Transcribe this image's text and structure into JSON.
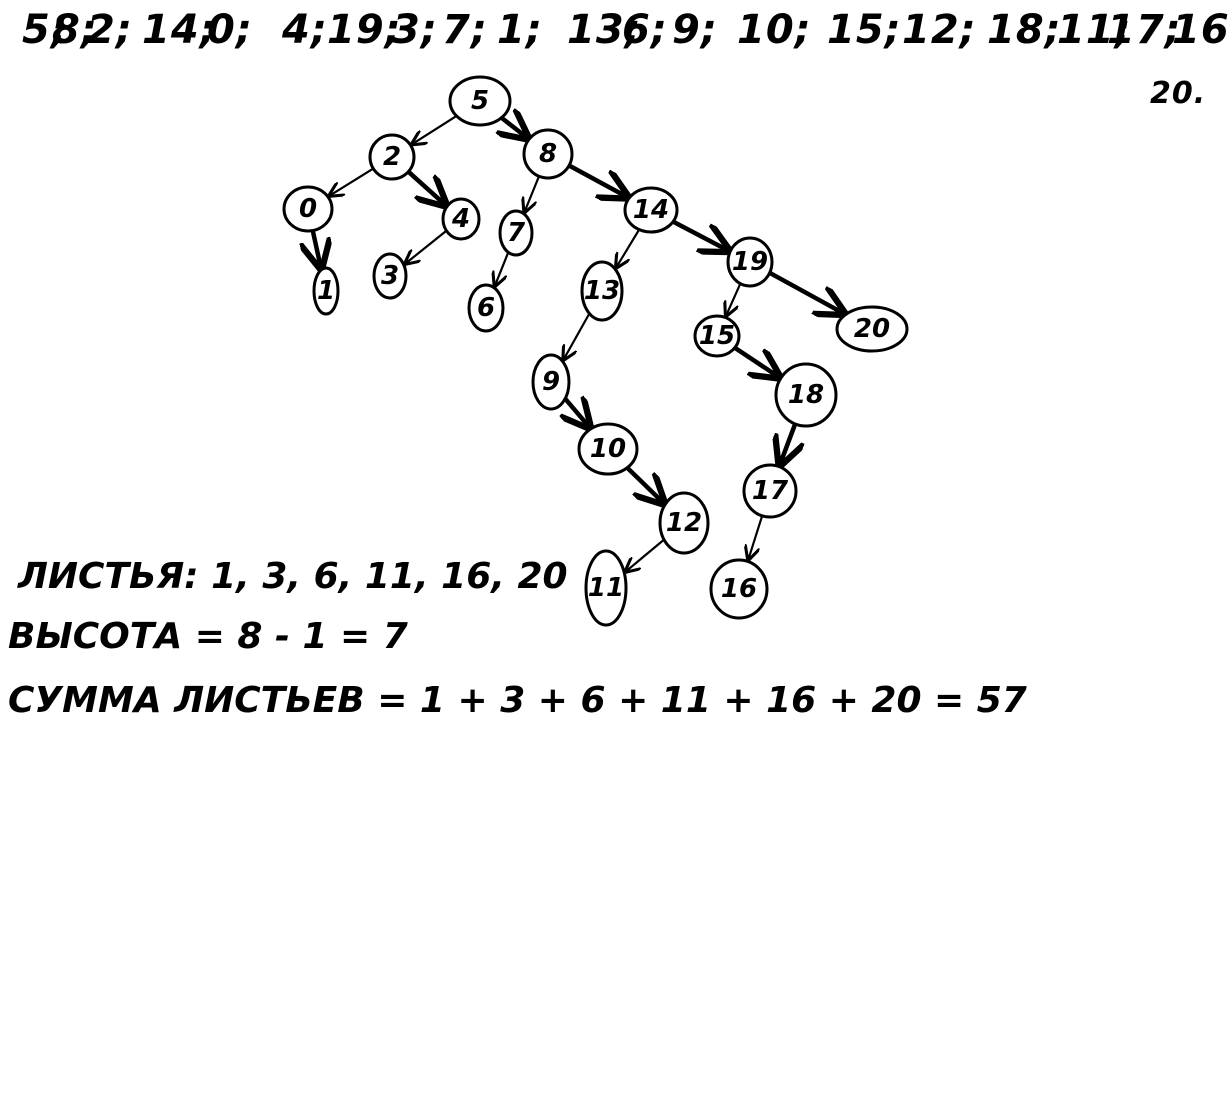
{
  "sequence": [
    "5",
    "8",
    "2",
    "14",
    "0",
    "4",
    "19",
    "3",
    "7",
    "1",
    "13",
    "6",
    "9",
    "10",
    "15",
    "12",
    "18",
    "11",
    "17",
    "16",
    "20"
  ],
  "tree": {
    "nodes": [
      "5",
      "2",
      "8",
      "0",
      "4",
      "7",
      "14",
      "1",
      "3",
      "6",
      "13",
      "19",
      "9",
      "15",
      "20",
      "10",
      "18",
      "12",
      "17",
      "11",
      "16"
    ],
    "edges": [
      [
        "5",
        "2"
      ],
      [
        "5",
        "8"
      ],
      [
        "2",
        "0"
      ],
      [
        "2",
        "4"
      ],
      [
        "0",
        "1"
      ],
      [
        "4",
        "3"
      ],
      [
        "8",
        "7"
      ],
      [
        "8",
        "14"
      ],
      [
        "7",
        "6"
      ],
      [
        "14",
        "13"
      ],
      [
        "14",
        "19"
      ],
      [
        "13",
        "9"
      ],
      [
        "9",
        "10"
      ],
      [
        "10",
        "12"
      ],
      [
        "12",
        "11"
      ],
      [
        "19",
        "15"
      ],
      [
        "19",
        "20"
      ],
      [
        "15",
        "18"
      ],
      [
        "18",
        "17"
      ],
      [
        "17",
        "16"
      ]
    ]
  },
  "notes": {
    "leaves": "ЛИСТЬЯ: 1, 3, 6, 11, 16, 20",
    "height": "ВЫСОТА = 8 - 1 = 7",
    "sum": "СУММА ЛИСТЬЕВ = 1 + 3 + 6 + 11 + 16 + 20 = 57"
  }
}
